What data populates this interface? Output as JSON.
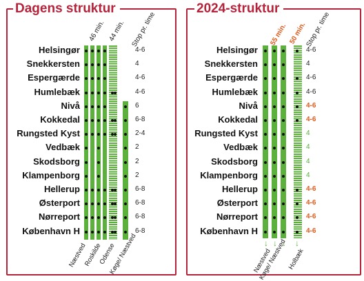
{
  "left": {
    "title": "Dagens struktur",
    "headers": {
      "c1": "46 min.",
      "c2": "44 min.",
      "stop": "Stop pr. time"
    },
    "stations": [
      "Helsingør",
      "Snekkersten",
      "Espergærde",
      "Humlebæk",
      "Nivå",
      "Kokkedal",
      "Rungsted Kyst",
      "Vedbæk",
      "Skodsborg",
      "Klampenborg",
      "Hellerup",
      "Østerport",
      "Nørreport",
      "København H"
    ],
    "stops": [
      "4-6",
      "4",
      "4-6",
      "4-6",
      "6",
      "6-8",
      "2-4",
      "2",
      "2",
      "2",
      "6-8",
      "6-8",
      "6-8",
      "6-8"
    ],
    "destinations": [
      "Næstved",
      "Roskilde",
      "Odense",
      "Køge/\nNæstved"
    ]
  },
  "right": {
    "title": "2024-struktur",
    "headers": {
      "c1": "55 min.",
      "c2": "50 min.",
      "stop": "Stop pr. time"
    },
    "stations": [
      "Helsingør",
      "Snekkersten",
      "Espergærde",
      "Humlebæk",
      "Nivå",
      "Kokkedal",
      "Rungsted Kyst",
      "Vedbæk",
      "Skodsborg",
      "Klampenborg",
      "Hellerup",
      "Østerport",
      "Nørreport",
      "København H"
    ],
    "stops": [
      "4-6",
      "4",
      "4-6",
      "4-6",
      "4-6",
      "4-6",
      "4",
      "4",
      "4",
      "4",
      "4-6",
      "4-6",
      "4-6",
      "4-6"
    ],
    "stop_colors": [
      "normal",
      "normal",
      "normal",
      "normal",
      "orange",
      "orange",
      "green",
      "green",
      "green",
      "green",
      "orange",
      "orange",
      "orange",
      "orange"
    ],
    "destinations": [
      "Næstved",
      "Køge/\nNæstved",
      "Holbæk"
    ]
  },
  "colors": {
    "frame": "#b5233b",
    "line": "#5cb13d",
    "dot": "#111111",
    "changed": "#e05a1c"
  }
}
